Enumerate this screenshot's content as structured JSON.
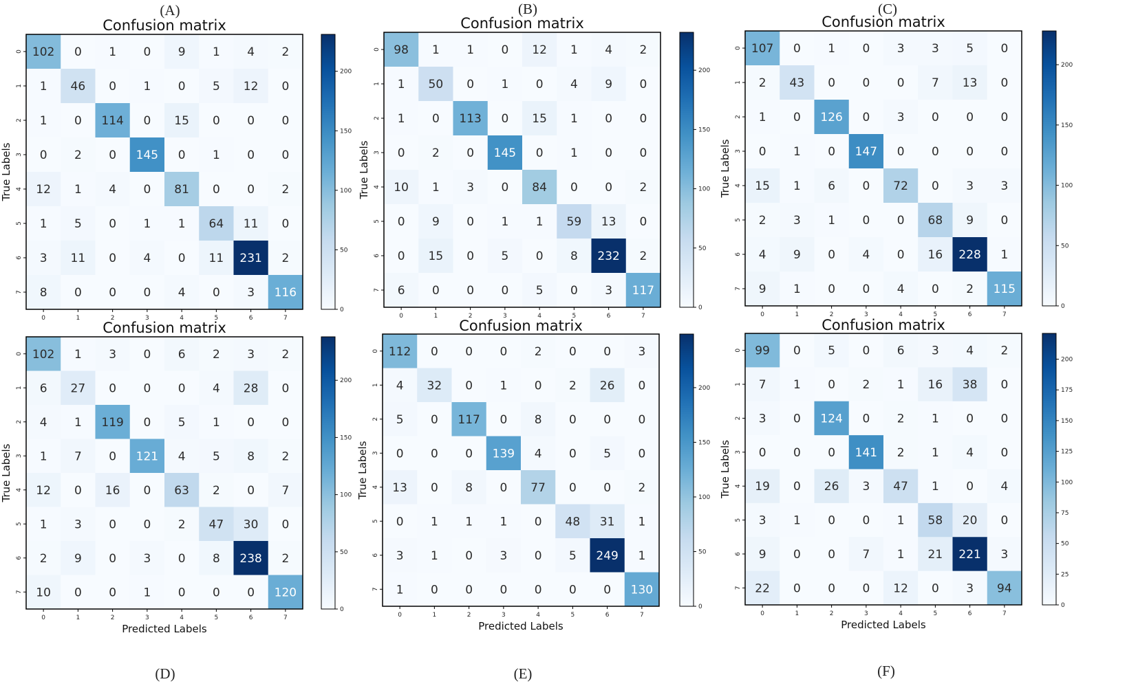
{
  "chart_data": [
    {
      "type": "heatmap",
      "panel": "(A)",
      "title": "Confusion matrix",
      "xlabel": "",
      "ylabel": "True Labels",
      "x_ticks": [
        "0",
        "1",
        "2",
        "3",
        "4",
        "5",
        "6",
        "7"
      ],
      "y_ticks": [
        "0",
        "1",
        "2",
        "3",
        "4",
        "5",
        "6",
        "7"
      ],
      "colorbar_ticks": [
        0,
        50,
        100,
        150,
        200
      ],
      "vmax": 231,
      "matrix": [
        [
          102,
          0,
          1,
          0,
          9,
          1,
          4,
          2
        ],
        [
          1,
          46,
          0,
          1,
          0,
          5,
          12,
          0
        ],
        [
          1,
          0,
          114,
          0,
          15,
          0,
          0,
          0
        ],
        [
          0,
          2,
          0,
          145,
          0,
          1,
          0,
          0
        ],
        [
          12,
          1,
          4,
          0,
          81,
          0,
          0,
          2
        ],
        [
          1,
          5,
          0,
          1,
          1,
          64,
          11,
          0
        ],
        [
          3,
          11,
          0,
          4,
          0,
          11,
          231,
          2
        ],
        [
          8,
          0,
          0,
          0,
          4,
          0,
          3,
          116
        ]
      ]
    },
    {
      "type": "heatmap",
      "panel": "(B)",
      "title": "Confusion matrix",
      "xlabel": "",
      "ylabel": "True Labels",
      "x_ticks": [
        "0",
        "1",
        "2",
        "3",
        "4",
        "5",
        "6",
        "7"
      ],
      "y_ticks": [
        "0",
        "1",
        "2",
        "3",
        "4",
        "5",
        "6",
        "7"
      ],
      "colorbar_ticks": [
        0,
        50,
        100,
        150,
        200
      ],
      "vmax": 232,
      "matrix": [
        [
          98,
          1,
          1,
          0,
          12,
          1,
          4,
          2
        ],
        [
          1,
          50,
          0,
          1,
          0,
          4,
          9,
          0
        ],
        [
          1,
          0,
          113,
          0,
          15,
          1,
          0,
          0
        ],
        [
          0,
          2,
          0,
          145,
          0,
          1,
          0,
          0
        ],
        [
          10,
          1,
          3,
          0,
          84,
          0,
          0,
          2
        ],
        [
          0,
          9,
          0,
          1,
          1,
          59,
          13,
          0
        ],
        [
          0,
          15,
          0,
          5,
          0,
          8,
          232,
          2
        ],
        [
          6,
          0,
          0,
          0,
          5,
          0,
          3,
          117
        ]
      ]
    },
    {
      "type": "heatmap",
      "panel": "(C)",
      "title": "Confusion matrix",
      "xlabel": "",
      "ylabel": "True Labels",
      "x_ticks": [
        "0",
        "1",
        "2",
        "3",
        "4",
        "5",
        "6",
        "7"
      ],
      "y_ticks": [
        "0",
        "1",
        "2",
        "3",
        "4",
        "5",
        "6",
        "7"
      ],
      "colorbar_ticks": [
        0,
        50,
        100,
        150,
        200
      ],
      "vmax": 228,
      "matrix": [
        [
          107,
          0,
          1,
          0,
          3,
          3,
          5,
          0
        ],
        [
          2,
          43,
          0,
          0,
          0,
          7,
          13,
          0
        ],
        [
          1,
          0,
          126,
          0,
          3,
          0,
          0,
          0
        ],
        [
          0,
          1,
          0,
          147,
          0,
          0,
          0,
          0
        ],
        [
          15,
          1,
          6,
          0,
          72,
          0,
          3,
          3
        ],
        [
          2,
          3,
          1,
          0,
          0,
          68,
          9,
          0
        ],
        [
          4,
          9,
          0,
          4,
          0,
          16,
          228,
          1
        ],
        [
          9,
          1,
          0,
          0,
          4,
          0,
          2,
          115
        ]
      ]
    },
    {
      "type": "heatmap",
      "panel": "(D)",
      "title": "Confusion matrix",
      "xlabel": "Predicted Labels",
      "ylabel": "True Labels",
      "x_ticks": [
        "0",
        "1",
        "2",
        "3",
        "4",
        "5",
        "6",
        "7"
      ],
      "y_ticks": [
        "0",
        "1",
        "2",
        "3",
        "4",
        "5",
        "6",
        "7"
      ],
      "colorbar_ticks": [
        0,
        50,
        100,
        150,
        200
      ],
      "vmax": 238,
      "matrix": [
        [
          102,
          1,
          3,
          0,
          6,
          2,
          3,
          2
        ],
        [
          6,
          27,
          0,
          0,
          0,
          4,
          28,
          0
        ],
        [
          4,
          1,
          119,
          0,
          5,
          1,
          0,
          0
        ],
        [
          1,
          7,
          0,
          121,
          4,
          5,
          8,
          2
        ],
        [
          12,
          0,
          16,
          0,
          63,
          2,
          0,
          7
        ],
        [
          1,
          3,
          0,
          0,
          2,
          47,
          30,
          0
        ],
        [
          2,
          9,
          0,
          3,
          0,
          8,
          238,
          2
        ],
        [
          10,
          0,
          0,
          1,
          0,
          0,
          0,
          120
        ]
      ]
    },
    {
      "type": "heatmap",
      "panel": "(E)",
      "title": "Confusion matrix",
      "xlabel": "Predicted Labels",
      "ylabel": "True Labels",
      "x_ticks": [
        "0",
        "1",
        "2",
        "3",
        "4",
        "5",
        "6",
        "7"
      ],
      "y_ticks": [
        "0",
        "1",
        "2",
        "3",
        "4",
        "5",
        "6",
        "7"
      ],
      "colorbar_ticks": [
        0,
        50,
        100,
        150,
        200
      ],
      "vmax": 249,
      "matrix": [
        [
          112,
          0,
          0,
          0,
          2,
          0,
          0,
          3
        ],
        [
          4,
          32,
          0,
          1,
          0,
          2,
          26,
          0
        ],
        [
          5,
          0,
          117,
          0,
          8,
          0,
          0,
          0
        ],
        [
          0,
          0,
          0,
          139,
          4,
          0,
          5,
          0
        ],
        [
          13,
          0,
          8,
          0,
          77,
          0,
          0,
          2
        ],
        [
          0,
          1,
          1,
          1,
          0,
          48,
          31,
          1
        ],
        [
          3,
          1,
          0,
          3,
          0,
          5,
          249,
          1
        ],
        [
          1,
          0,
          0,
          0,
          0,
          0,
          0,
          130
        ]
      ]
    },
    {
      "type": "heatmap",
      "panel": "(F)",
      "title": "Confusion matrix",
      "xlabel": "Predicted Labels",
      "ylabel": "True Labels",
      "x_ticks": [
        "0",
        "1",
        "2",
        "3",
        "4",
        "5",
        "6",
        "7"
      ],
      "y_ticks": [
        "0",
        "1",
        "2",
        "3",
        "4",
        "5",
        "6",
        "7"
      ],
      "colorbar_ticks": [
        0,
        25,
        50,
        75,
        100,
        125,
        150,
        175,
        200
      ],
      "vmax": 221,
      "matrix": [
        [
          99,
          0,
          5,
          0,
          6,
          3,
          4,
          2
        ],
        [
          7,
          1,
          0,
          2,
          1,
          16,
          38,
          0
        ],
        [
          3,
          0,
          124,
          0,
          2,
          1,
          0,
          0
        ],
        [
          0,
          0,
          0,
          141,
          2,
          1,
          4,
          0
        ],
        [
          19,
          0,
          26,
          3,
          47,
          1,
          0,
          4
        ],
        [
          3,
          1,
          0,
          0,
          1,
          58,
          20,
          0
        ],
        [
          9,
          0,
          0,
          7,
          1,
          21,
          221,
          3
        ],
        [
          22,
          0,
          0,
          0,
          12,
          0,
          3,
          94
        ]
      ]
    }
  ]
}
